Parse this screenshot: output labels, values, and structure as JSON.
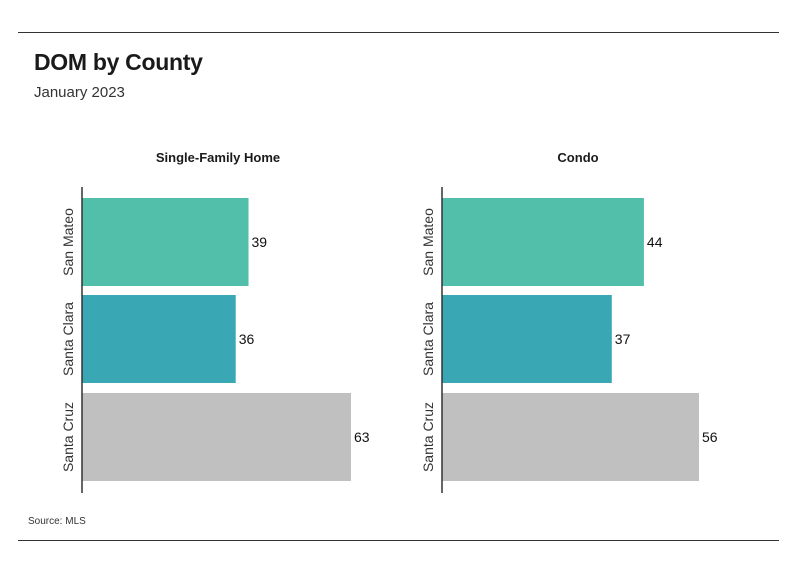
{
  "header": {
    "title": "DOM by County",
    "subtitle": "January 2023"
  },
  "footer": {
    "source": "Source:  MLS"
  },
  "colors": {
    "San Mateo": "#52bfaa",
    "Santa Clara": "#3aa7b4",
    "Santa Cruz": "#c0c0c0",
    "axis": "#333333"
  },
  "chart_data": [
    {
      "type": "bar",
      "orientation": "horizontal",
      "title": "Single-Family Home",
      "categories": [
        "San Mateo",
        "Santa Clara",
        "Santa Cruz"
      ],
      "values": [
        39,
        36,
        63
      ],
      "xlim": [
        0,
        63
      ],
      "grid": false
    },
    {
      "type": "bar",
      "orientation": "horizontal",
      "title": "Condo",
      "categories": [
        "San Mateo",
        "Santa Clara",
        "Santa Cruz"
      ],
      "values": [
        44,
        37,
        56
      ],
      "xlim": [
        0,
        56
      ],
      "grid": false
    }
  ]
}
